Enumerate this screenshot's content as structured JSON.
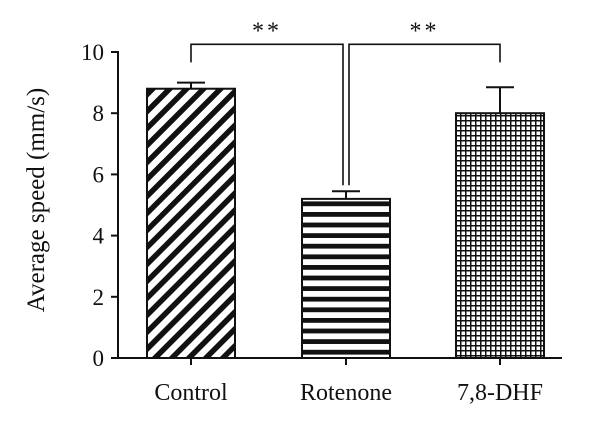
{
  "chart_data": {
    "type": "bar",
    "title": "",
    "xlabel": "",
    "ylabel": "Average speed (mm/s)",
    "ylim": [
      0,
      10
    ],
    "yticks": [
      0,
      2,
      4,
      6,
      8,
      10
    ],
    "ytick_labels": [
      "0",
      "2",
      "4",
      "6",
      "8",
      "10"
    ],
    "categories": [
      "Control",
      "Rotenone",
      "7,8-DHF"
    ],
    "values": [
      8.8,
      5.2,
      8.0
    ],
    "errors": [
      0.2,
      0.25,
      0.85
    ],
    "patterns": [
      "diagonal-hatch",
      "horizontal-stripes",
      "grid-crosshatch"
    ],
    "significance": [
      {
        "from": 0,
        "to": 1,
        "label": "**",
        "y": 10.25
      },
      {
        "from": 1,
        "to": 2,
        "label": "**",
        "y": 10.25
      }
    ],
    "grid": false,
    "legend": "none"
  }
}
